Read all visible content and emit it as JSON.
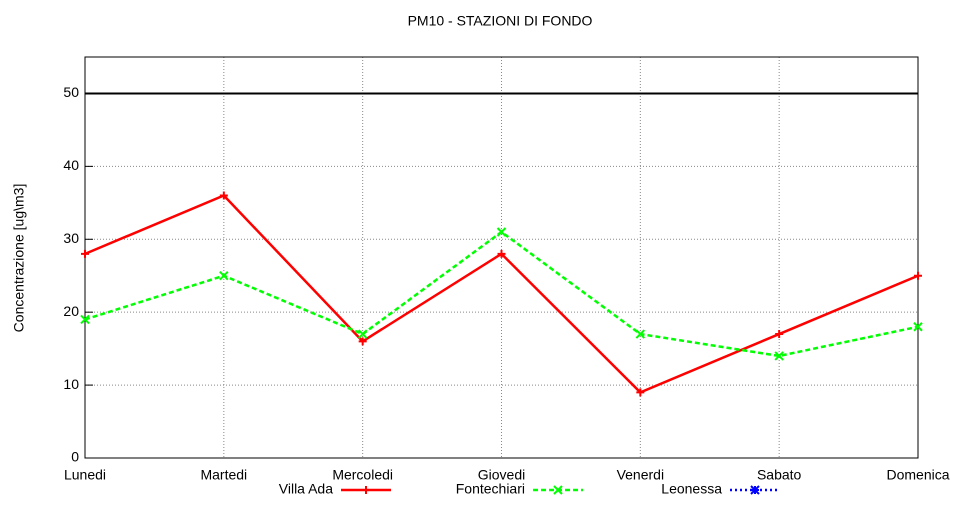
{
  "chart_data": {
    "type": "line",
    "title": "PM10 - STAZIONI DI FONDO",
    "y_label": "Concentrazione [ug\\m3]",
    "categories": [
      "Lunedi",
      "Martedi",
      "Mercoledi",
      "Giovedi",
      "Venerdi",
      "Sabato",
      "Domenica"
    ],
    "series": [
      {
        "name": "Villa Ada",
        "color": "#ff0000",
        "marker": "plus",
        "dash": "solid",
        "values": [
          28,
          36,
          16,
          28,
          9,
          17,
          25
        ]
      },
      {
        "name": "Fontechiari",
        "color": "#00ff00",
        "marker": "cross",
        "dash": "dashed",
        "values": [
          19,
          25,
          17,
          31,
          17,
          14,
          18
        ]
      },
      {
        "name": "Leonessa",
        "color": "#0000ff",
        "marker": "star",
        "dash": "dotted",
        "values": [
          null,
          null,
          null,
          null,
          null,
          null,
          null
        ]
      }
    ],
    "limit_line": 50,
    "ylim": [
      0,
      55
    ],
    "yticks": [
      0,
      10,
      20,
      30,
      40,
      50
    ],
    "grid": true,
    "legend": "bottom"
  }
}
